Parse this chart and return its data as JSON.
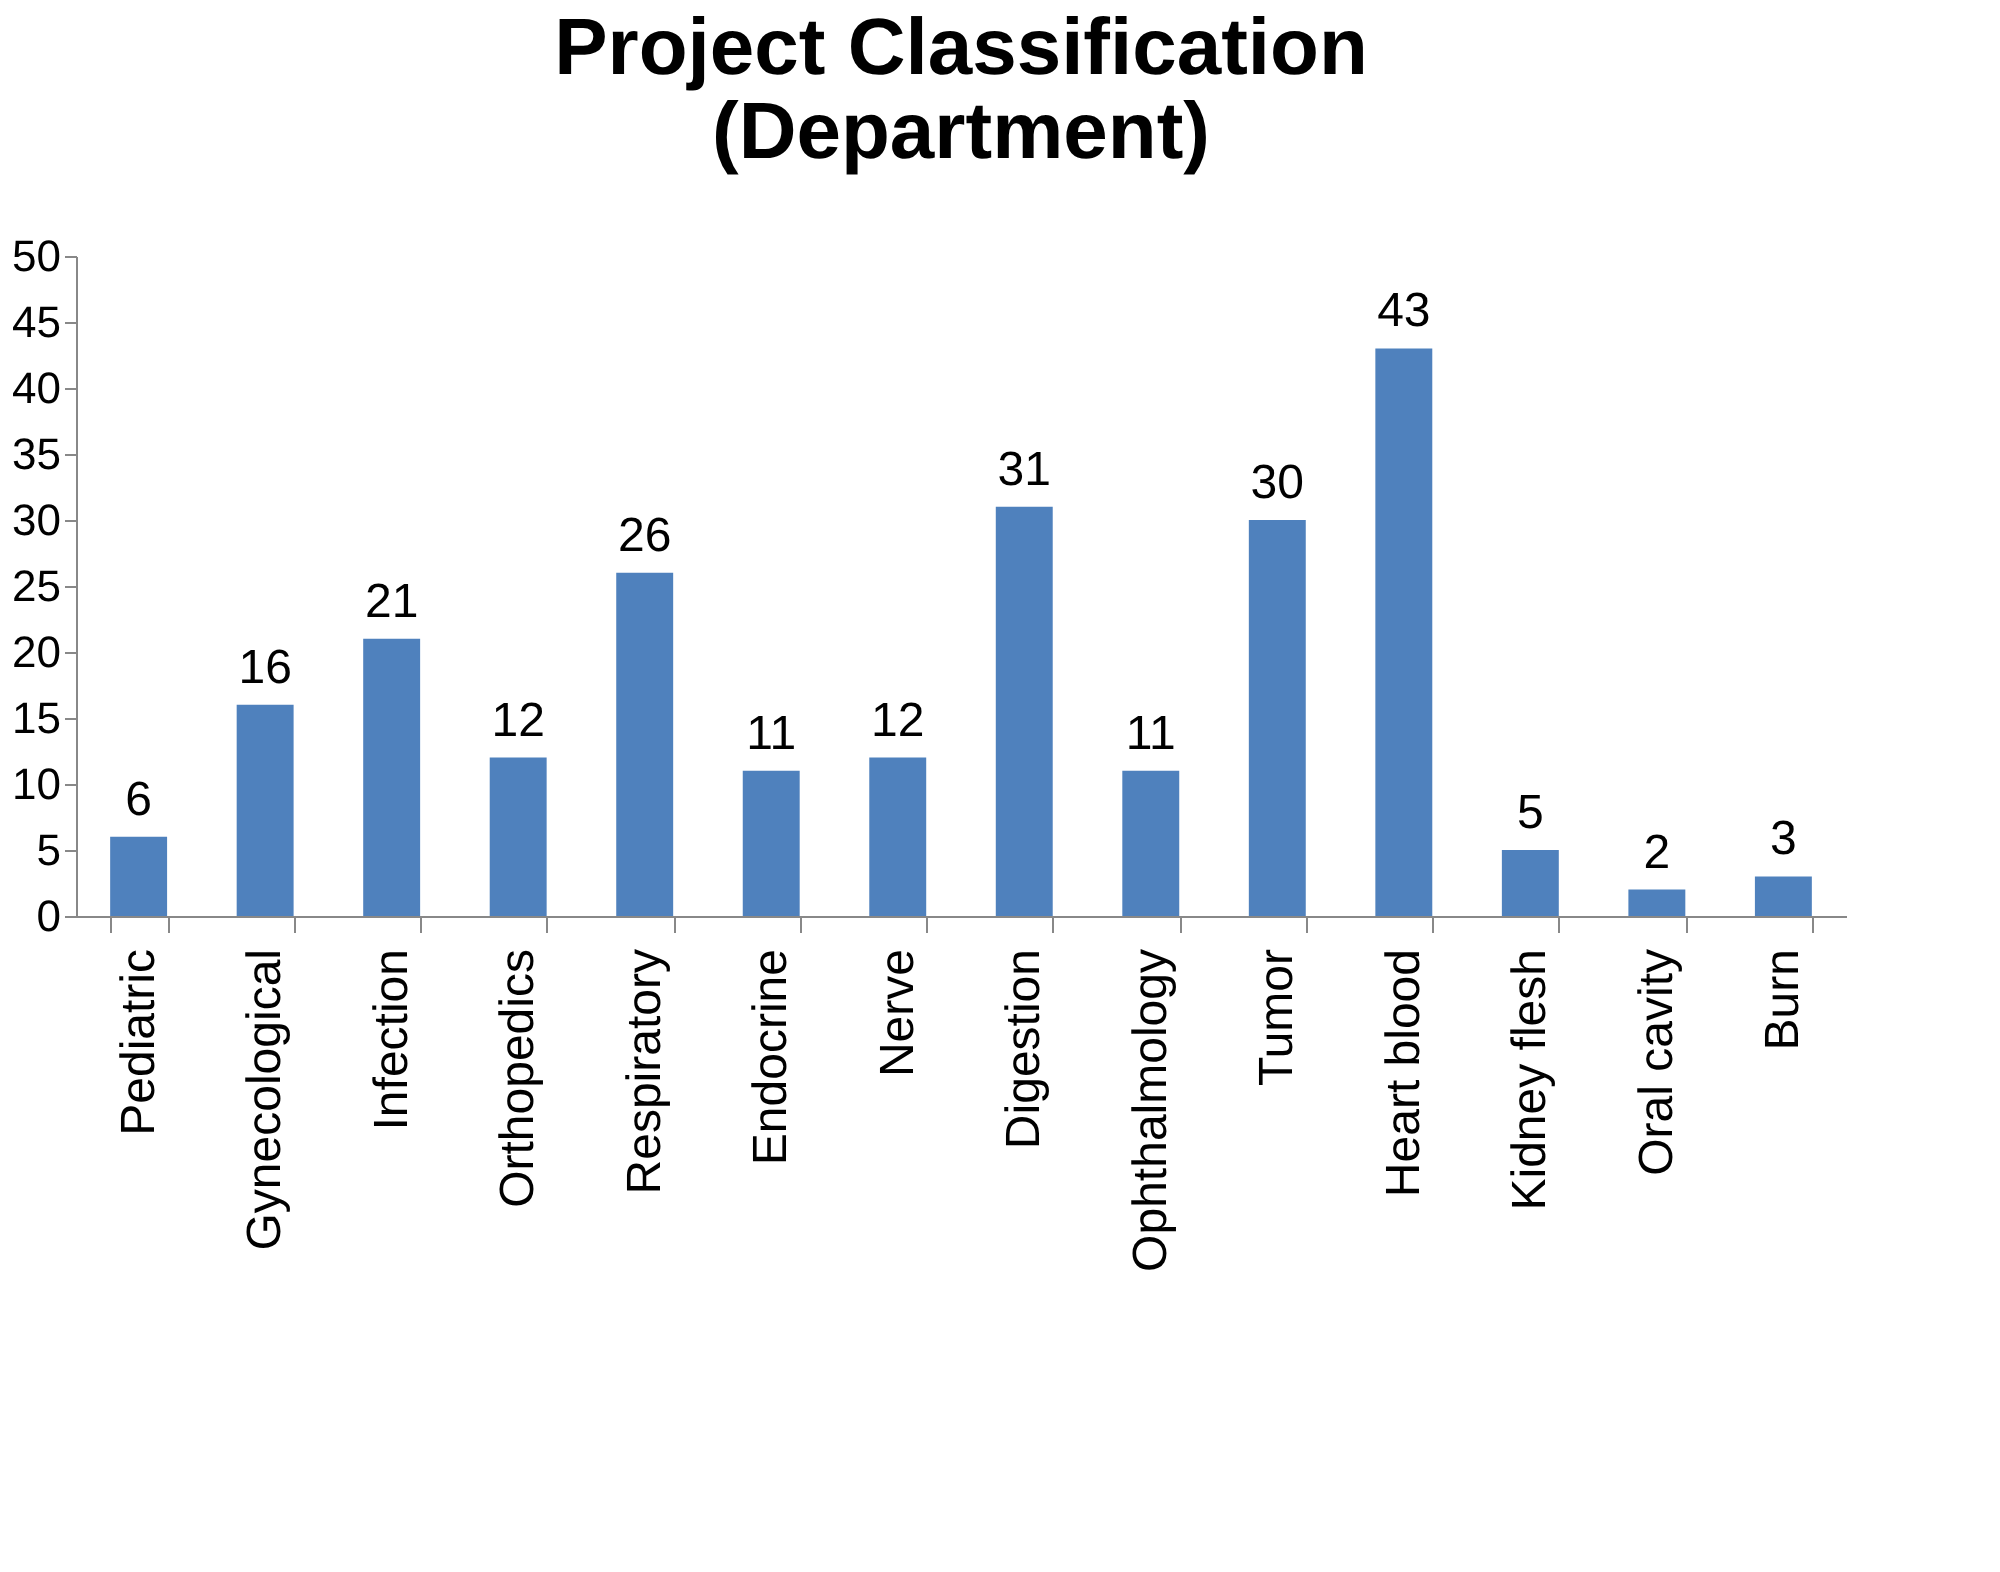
{
  "chart_data": {
    "type": "bar",
    "title": "Project Classification\n(Department)",
    "categories": [
      "Pediatric",
      "Gynecological",
      "Infection",
      "Orthopedics",
      "Respiratory",
      "Endocrine",
      "Nerve",
      "Digestion",
      "Ophthalmology",
      "Tumor",
      "Heart blood",
      "Kidney flesh",
      "Oral cavity",
      "Burn"
    ],
    "values": [
      6,
      16,
      21,
      12,
      26,
      11,
      12,
      31,
      11,
      30,
      43,
      5,
      2,
      3
    ],
    "color": "#4f81bd",
    "ylim": [
      0,
      50
    ],
    "yticks": [
      0,
      5,
      10,
      15,
      20,
      25,
      30,
      35,
      40,
      45,
      50
    ],
    "grid": false,
    "data_labels": true
  }
}
